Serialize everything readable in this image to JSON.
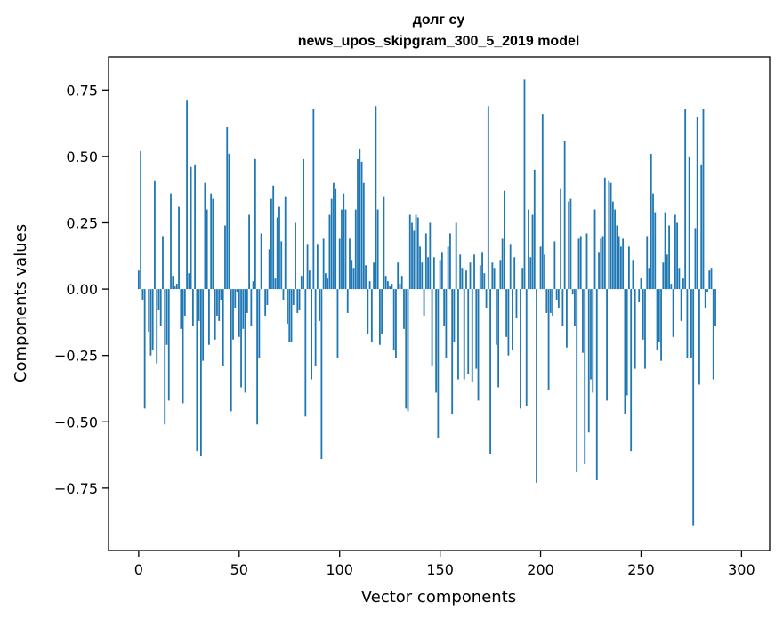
{
  "chart_data": {
    "type": "bar",
    "title_line1": "долг су",
    "title_line2": "news_upos_skipgram_300_5_2019 model",
    "xlabel": "Vector components",
    "ylabel": "Components values",
    "xlim": [
      -15,
      314
    ],
    "ylim": [
      -0.985,
      0.875
    ],
    "x_ticks": [
      0,
      50,
      100,
      150,
      200,
      250,
      300
    ],
    "x_tick_labels": [
      "0",
      "50",
      "100",
      "150",
      "200",
      "250",
      "300"
    ],
    "y_ticks": [
      -0.75,
      -0.5,
      -0.25,
      0.0,
      0.25,
      0.5,
      0.75
    ],
    "y_tick_labels": [
      "−0.75",
      "−0.50",
      "−0.25",
      "0.00",
      "0.25",
      "0.50",
      "0.75"
    ],
    "bar_color": "#1f77b4",
    "grid": false,
    "values": [
      0.07,
      0.52,
      -0.04,
      -0.45,
      0.0,
      -0.16,
      -0.25,
      -0.23,
      0.41,
      -0.28,
      -0.08,
      -0.14,
      0.2,
      -0.51,
      -0.21,
      -0.42,
      0.36,
      0.05,
      0.01,
      0.02,
      0.31,
      -0.15,
      -0.43,
      -0.1,
      0.71,
      0.06,
      0.46,
      -0.14,
      0.47,
      -0.61,
      -0.12,
      -0.63,
      -0.27,
      0.4,
      0.3,
      -0.21,
      0.36,
      0.34,
      -0.19,
      -0.1,
      -0.12,
      -0.04,
      -0.29,
      0.24,
      0.61,
      0.51,
      -0.46,
      -0.19,
      -0.07,
      -0.01,
      -0.18,
      -0.37,
      -0.15,
      -0.39,
      -0.09,
      0.28,
      -0.14,
      0.03,
      0.49,
      -0.51,
      -0.26,
      0.21,
      0.0,
      -0.1,
      -0.06,
      0.15,
      0.34,
      0.39,
      0.04,
      0.27,
      0.31,
      0.18,
      -0.04,
      0.35,
      -0.13,
      -0.2,
      -0.2,
      -0.06,
      0.25,
      -0.09,
      -0.08,
      0.05,
      0.49,
      -0.48,
      0.17,
      0.07,
      -0.34,
      0.68,
      -0.29,
      0.17,
      -0.12,
      -0.64,
      0.19,
      0.06,
      0.04,
      0.28,
      0.34,
      0.4,
      0.38,
      -0.26,
      0.19,
      0.3,
      0.36,
      0.3,
      -0.09,
      0.19,
      0.11,
      0.08,
      0.3,
      0.49,
      0.53,
      0.48,
      0.4,
      0.09,
      -0.17,
      0.03,
      -0.2,
      0.1,
      0.69,
      0.3,
      -0.21,
      -0.17,
      0.35,
      0.05,
      0.03,
      0.01,
      0.02,
      -0.23,
      -0.26,
      0.1,
      0.02,
      0.05,
      -0.15,
      -0.45,
      -0.46,
      0.28,
      0.25,
      0.22,
      0.28,
      0.27,
      0.16,
      0.1,
      -0.1,
      0.21,
      0.12,
      0.25,
      -0.29,
      0.12,
      -0.39,
      -0.56,
      0.11,
      0.14,
      -0.14,
      -0.26,
      0.16,
      0.21,
      -0.47,
      -0.2,
      0.25,
      -0.34,
      0.13,
      0.08,
      -0.34,
      0.07,
      -0.32,
      0.1,
      -0.35,
      0.13,
      -0.3,
      -0.42,
      0.09,
      0.14,
      0.06,
      -0.07,
      0.69,
      -0.62,
      0.1,
      0.08,
      -0.21,
      -0.37,
      0.11,
      0.19,
      0.37,
      -0.18,
      -0.25,
      0.17,
      -0.23,
      0.12,
      -0.11,
      0.0,
      -0.45,
      0.08,
      0.79,
      -0.44,
      0.3,
      0.12,
      0.28,
      0.45,
      -0.73,
      0.0,
      0.16,
      0.66,
      0.13,
      -0.09,
      -0.38,
      -0.09,
      -0.1,
      0.18,
      -0.04,
      -0.07,
      0.38,
      -0.14,
      0.56,
      -0.22,
      0.33,
      0.34,
      -0.02,
      -0.14,
      -0.69,
      0.19,
      0.2,
      -0.24,
      -0.66,
      0.21,
      -0.54,
      -0.34,
      -0.39,
      0.3,
      -0.72,
      0.14,
      0.19,
      0.2,
      0.42,
      -0.42,
      0.41,
      0.4,
      0.33,
      0.3,
      0.24,
      0.2,
      0.16,
      0.19,
      -0.47,
      -0.4,
      0.16,
      -0.61,
      0.11,
      -0.3,
      0.0,
      -0.05,
      0.04,
      -0.19,
      -0.3,
      0.2,
      0.08,
      0.51,
      0.36,
      0.29,
      -0.23,
      -0.2,
      -0.27,
      0.1,
      0.29,
      0.13,
      0.24,
      0.02,
      -0.18,
      0.28,
      0.25,
      0.08,
      -0.12,
      0.04,
      0.68,
      -0.26,
      0.5,
      -0.26,
      -0.89,
      0.23,
      0.65,
      -0.36,
      0.47,
      0.68,
      -0.07,
      -0.01,
      0.07,
      0.08,
      -0.34,
      -0.14
    ]
  }
}
